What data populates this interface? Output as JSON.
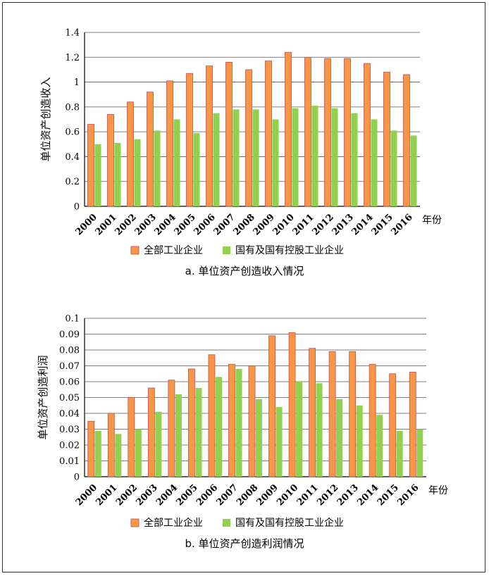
{
  "chart_data": [
    {
      "type": "bar",
      "title": "",
      "caption": "a.  单位资产创造收入情况",
      "xlabel": "年份",
      "ylabel": "单位资产创造收入",
      "ylim": [
        0,
        1.4
      ],
      "yticks": [
        "0",
        "0.2",
        "0.4",
        "0.6",
        "0.8",
        "1",
        "1.2",
        "1.4"
      ],
      "grid": true,
      "legend_position": "bottom",
      "categories": [
        "2000",
        "2001",
        "2002",
        "2003",
        "2004",
        "2005",
        "2006",
        "2007",
        "2008",
        "2009",
        "2010",
        "2011",
        "2012",
        "2013",
        "2014",
        "2015",
        "2016"
      ],
      "series": [
        {
          "name": "全部工业企业",
          "color": "#f79646",
          "values": [
            0.66,
            0.74,
            0.84,
            0.92,
            1.01,
            1.07,
            1.13,
            1.16,
            1.1,
            1.17,
            1.24,
            1.2,
            1.19,
            1.19,
            1.15,
            1.08,
            1.06
          ]
        },
        {
          "name": "国有及国有控股工业企业",
          "color": "#92d050",
          "values": [
            0.5,
            0.51,
            0.54,
            0.61,
            0.7,
            0.59,
            0.75,
            0.78,
            0.78,
            0.7,
            0.79,
            0.81,
            0.79,
            0.75,
            0.7,
            0.61,
            0.57
          ]
        }
      ]
    },
    {
      "type": "bar",
      "title": "",
      "caption": "b.  单位资产创造利润情况",
      "xlabel": "年份",
      "ylabel": "单位资产创造利润",
      "ylim": [
        0,
        0.1
      ],
      "yticks": [
        "0",
        "0.01",
        "0.02",
        "0.03",
        "0.04",
        "0.05",
        "0.06",
        "0.07",
        "0.08",
        "0.09",
        "0.1"
      ],
      "grid": true,
      "legend_position": "bottom",
      "categories": [
        "2000",
        "2001",
        "2002",
        "2003",
        "2004",
        "2005",
        "2006",
        "2007",
        "2008",
        "2009",
        "2010",
        "2011",
        "2012",
        "2013",
        "2014",
        "2015",
        "2016"
      ],
      "series": [
        {
          "name": "全部工业企业",
          "color": "#f79646",
          "values": [
            0.035,
            0.04,
            0.05,
            0.056,
            0.061,
            0.068,
            0.077,
            0.071,
            0.07,
            0.089,
            0.091,
            0.081,
            0.079,
            0.079,
            0.071,
            0.065,
            0.066
          ]
        },
        {
          "name": "国有及国有控股工业企业",
          "color": "#92d050",
          "values": [
            0.029,
            0.027,
            0.03,
            0.041,
            0.052,
            0.056,
            0.063,
            0.068,
            0.049,
            0.044,
            0.06,
            0.059,
            0.049,
            0.045,
            0.039,
            0.029,
            0.03
          ]
        }
      ]
    }
  ]
}
